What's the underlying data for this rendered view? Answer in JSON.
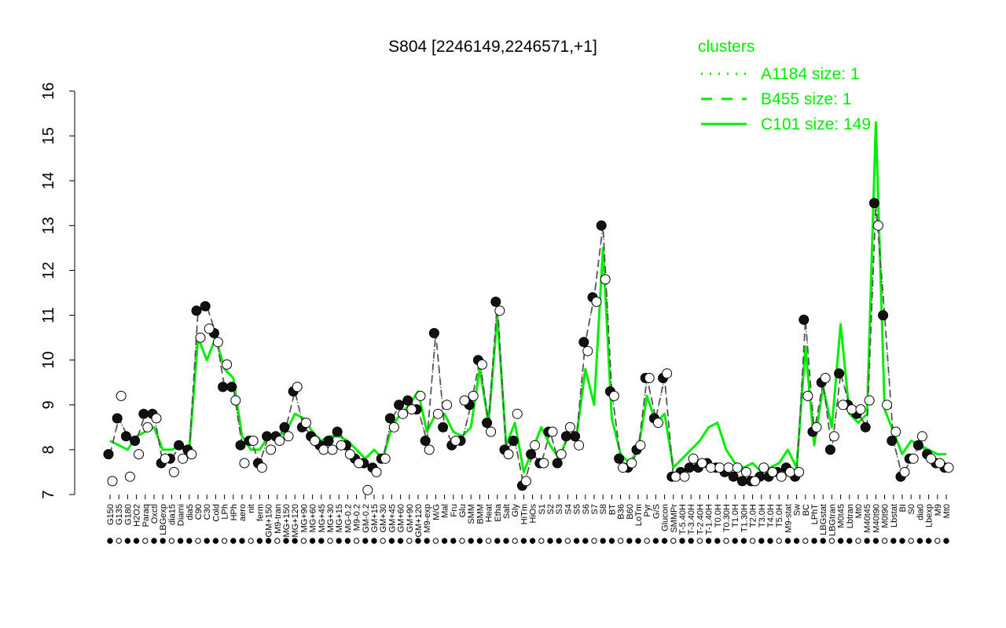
{
  "chart_data": {
    "type": "line",
    "title": "S804 [2246149,2246571,+1]",
    "xlabel": "",
    "ylabel": "",
    "ylim": [
      7,
      16
    ],
    "yticks": [
      7,
      8,
      9,
      10,
      11,
      12,
      13,
      14,
      15,
      16
    ],
    "x_tick_labels": [
      "G150",
      "G135",
      "G180",
      "H2O2",
      "Paraq",
      "Oxctl",
      "LBGexp",
      "dia15",
      "Diami",
      "dia5",
      "C90",
      "C30",
      "Cold",
      "LPh",
      "HPh",
      "aero",
      "nit",
      "ferm",
      "GM+150",
      "M9-tran",
      "MG+150",
      "MG+120",
      "MG+90",
      "MG+60",
      "MG+45",
      "MG+30",
      "MG+15",
      "MG-0.2",
      "M9-0.2",
      "GM-0.2",
      "GM+15",
      "GM+30",
      "GM+45",
      "GM+60",
      "GM+90",
      "GM+120",
      "M9-exp",
      "M/G",
      "Mal",
      "Fru",
      "Glu",
      "SMM",
      "BMM",
      "Heat",
      "Etha",
      "Salt",
      "Gly",
      "HiTm",
      "HiOs",
      "S1",
      "S2",
      "S3",
      "S4",
      "S5",
      "S6",
      "S7",
      "S8",
      "BT",
      "B36",
      "B60",
      "LoTm",
      "Pyr",
      "G/S",
      "Glucon",
      "SMMPr",
      "T-5.40H",
      "T-3.40H",
      "T-2.40H",
      "T-1.40H",
      "T0.0H",
      "T0.30H",
      "T1.0H",
      "T1.30H",
      "T2.0H",
      "T3.0H",
      "T4.0H",
      "T5.0H",
      "M9-stat",
      "Sw",
      "BC",
      "LPhT",
      "LBGstat",
      "LBGtran",
      "M0t45",
      "Lbtran",
      "Mt0",
      "M40t45",
      "M40t90",
      "M0t90",
      "Lbstat",
      "BI",
      "S0",
      "dia0",
      "Lbexp",
      "M9",
      "Mt0"
    ],
    "legend": {
      "title": "clusters",
      "position": "top-right",
      "entries": [
        {
          "label": "A1184 size: 1",
          "style": "dotted"
        },
        {
          "label": "B455 size: 1",
          "style": "dashed"
        },
        {
          "label": "C101 size: 149",
          "style": "solid"
        }
      ]
    },
    "series": [
      {
        "name": "C101 size: 149",
        "style": "solid",
        "color": "#00ee00",
        "values": [
          8.2,
          8.1,
          8.0,
          8.3,
          8.4,
          8.5,
          8.0,
          8.0,
          8.1,
          8.0,
          10.5,
          10.0,
          10.5,
          9.8,
          9.6,
          8.3,
          8.0,
          8.0,
          8.3,
          8.3,
          8.4,
          8.8,
          8.7,
          8.4,
          8.2,
          8.3,
          8.3,
          8.2,
          8.0,
          7.8,
          8.0,
          7.8,
          8.5,
          8.8,
          9.0,
          9.3,
          8.4,
          8.8,
          8.8,
          8.4,
          8.3,
          8.5,
          9.8,
          8.6,
          11.0,
          8.1,
          8.6,
          7.5,
          8.0,
          8.5,
          8.1,
          7.8,
          8.3,
          8.3,
          9.8,
          9.0,
          12.5,
          8.7,
          7.9,
          7.7,
          8.0,
          9.2,
          8.6,
          8.8,
          7.6,
          7.8,
          8.0,
          8.2,
          8.5,
          8.6,
          8.0,
          7.7,
          7.6,
          7.7,
          7.5,
          7.6,
          7.7,
          8.0,
          7.6,
          10.3,
          8.1,
          9.4,
          8.5,
          10.8,
          8.8,
          8.6,
          8.8,
          15.3,
          8.9,
          8.4,
          7.9,
          8.2,
          8.1,
          8.0,
          7.9,
          7.9
        ]
      },
      {
        "name": "B455 size: 1",
        "style": "dashed",
        "color": "#555555",
        "values": [
          7.9,
          8.7,
          8.3,
          8.2,
          8.8,
          8.8,
          7.7,
          7.8,
          8.1,
          8.0,
          11.1,
          11.2,
          10.6,
          9.4,
          9.4,
          8.1,
          8.2,
          7.7,
          8.3,
          8.3,
          8.5,
          9.3,
          8.5,
          8.3,
          8.1,
          8.2,
          8.4,
          8.1,
          7.8,
          7.7,
          7.6,
          7.8,
          8.7,
          9.0,
          9.1,
          8.9,
          8.2,
          10.6,
          8.5,
          8.1,
          8.2,
          9.0,
          10.0,
          8.6,
          11.3,
          8.0,
          8.2,
          7.2,
          7.9,
          7.7,
          8.4,
          7.7,
          8.3,
          8.3,
          10.4,
          11.4,
          13.0,
          9.3,
          7.8,
          7.6,
          8.0,
          9.6,
          8.7,
          9.6,
          7.4,
          7.5,
          7.6,
          7.6,
          7.7,
          7.6,
          7.5,
          7.4,
          7.3,
          7.3,
          7.4,
          7.4,
          7.5,
          7.6,
          7.4,
          10.9,
          8.4,
          9.5,
          8.0,
          9.7,
          9.0,
          8.8,
          8.5,
          13.5,
          11.0,
          8.2,
          7.4,
          7.8,
          8.1,
          7.9,
          7.7,
          7.6
        ]
      },
      {
        "name": "A1184 size: 1",
        "style": "dotted",
        "color": "#555555",
        "values": [
          7.9,
          8.7,
          8.3,
          8.2,
          8.8,
          8.8,
          7.7,
          7.8,
          8.1,
          8.0,
          11.1,
          11.2,
          10.6,
          9.4,
          9.4,
          8.1,
          8.2,
          7.7,
          8.3,
          8.3,
          8.5,
          9.3,
          8.5,
          8.3,
          8.1,
          8.2,
          8.4,
          8.1,
          7.8,
          7.7,
          7.6,
          7.8,
          8.7,
          9.0,
          9.1,
          8.9,
          8.2,
          10.6,
          8.5,
          8.1,
          8.2,
          9.0,
          10.0,
          8.6,
          11.3,
          8.0,
          8.2,
          7.2,
          7.9,
          7.7,
          8.4,
          7.7,
          8.3,
          8.3,
          10.4,
          11.4,
          13.0,
          9.3,
          7.8,
          7.6,
          8.0,
          9.6,
          8.7,
          9.6,
          7.4,
          7.5,
          7.6,
          7.6,
          7.7,
          7.6,
          7.5,
          7.4,
          7.3,
          7.3,
          7.4,
          7.4,
          7.5,
          7.6,
          7.4,
          10.9,
          8.4,
          9.5,
          8.0,
          9.7,
          9.0,
          8.8,
          8.5,
          13.5,
          11.0,
          8.2,
          7.4,
          7.8,
          8.1,
          7.9,
          7.7,
          7.6
        ]
      }
    ],
    "points": {
      "filled": [
        7.9,
        8.7,
        8.3,
        8.2,
        8.8,
        8.8,
        7.7,
        7.8,
        8.1,
        8.0,
        11.1,
        11.2,
        10.6,
        9.4,
        9.4,
        8.1,
        8.2,
        7.7,
        8.3,
        8.3,
        8.5,
        9.3,
        8.5,
        8.3,
        8.1,
        8.2,
        8.4,
        8.1,
        7.8,
        7.7,
        7.6,
        7.8,
        8.7,
        9.0,
        9.1,
        8.9,
        8.2,
        10.6,
        8.5,
        8.1,
        8.2,
        9.0,
        10.0,
        8.6,
        11.3,
        8.0,
        8.2,
        7.2,
        7.9,
        7.7,
        8.4,
        7.7,
        8.3,
        8.3,
        10.4,
        11.4,
        13.0,
        9.3,
        7.8,
        7.6,
        8.0,
        9.6,
        8.7,
        9.6,
        7.4,
        7.5,
        7.6,
        7.6,
        7.7,
        7.6,
        7.5,
        7.4,
        7.3,
        7.3,
        7.4,
        7.4,
        7.5,
        7.6,
        7.4,
        10.9,
        8.4,
        9.5,
        8.0,
        9.7,
        9.0,
        8.8,
        8.5,
        13.5,
        11.0,
        8.2,
        7.4,
        7.8,
        8.1,
        7.9,
        7.7,
        7.6
      ],
      "open": [
        7.3,
        9.2,
        7.4,
        7.9,
        8.5,
        8.7,
        7.8,
        7.5,
        7.8,
        7.9,
        10.5,
        10.7,
        10.4,
        9.9,
        9.1,
        7.7,
        8.2,
        7.6,
        8.0,
        8.2,
        8.3,
        9.4,
        8.6,
        8.2,
        8.0,
        8.0,
        8.1,
        7.9,
        7.7,
        7.1,
        7.5,
        7.8,
        8.5,
        8.8,
        8.9,
        9.2,
        8.0,
        8.8,
        9.0,
        8.2,
        9.1,
        9.2,
        9.9,
        8.4,
        11.1,
        7.9,
        8.8,
        7.3,
        8.1,
        7.7,
        8.4,
        7.9,
        8.5,
        8.1,
        10.2,
        11.3,
        11.8,
        9.2,
        7.6,
        7.7,
        8.1,
        9.6,
        8.6,
        9.7,
        7.4,
        7.4,
        7.8,
        7.7,
        7.6,
        7.6,
        7.6,
        7.6,
        7.5,
        7.3,
        7.6,
        7.5,
        7.4,
        7.5,
        7.5,
        9.2,
        8.5,
        9.6,
        8.3,
        9.0,
        8.9,
        8.9,
        9.1,
        13.0,
        9.0,
        8.4,
        7.5,
        7.8,
        8.3,
        7.8,
        7.7,
        7.6
      ]
    }
  }
}
